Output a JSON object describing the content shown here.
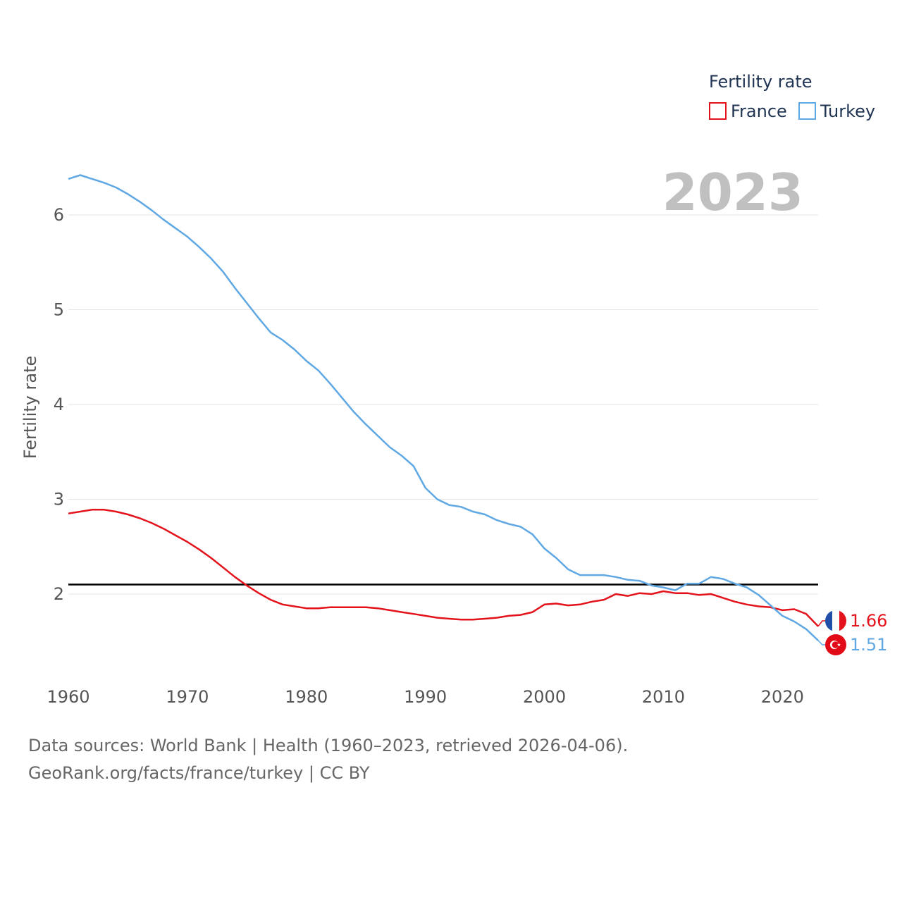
{
  "chart_data": {
    "type": "line",
    "title": "",
    "ylabel": "Fertility rate",
    "xlabel": "",
    "year_label": "2023",
    "legend_title": "Fertility rate",
    "legend_position": "top-right",
    "xlim": [
      1960,
      2023
    ],
    "ylim": [
      1.2,
      6.5
    ],
    "x_ticks": [
      1960,
      1970,
      1980,
      1990,
      2000,
      2010,
      2020
    ],
    "y_ticks": [
      2,
      3,
      4,
      5,
      6
    ],
    "grid": true,
    "reference_line": {
      "value": 2.1,
      "color": "#000000"
    },
    "x": [
      1960,
      1961,
      1962,
      1963,
      1964,
      1965,
      1966,
      1967,
      1968,
      1969,
      1970,
      1971,
      1972,
      1973,
      1974,
      1975,
      1976,
      1977,
      1978,
      1979,
      1980,
      1981,
      1982,
      1983,
      1984,
      1985,
      1986,
      1987,
      1988,
      1989,
      1990,
      1991,
      1992,
      1993,
      1994,
      1995,
      1996,
      1997,
      1998,
      1999,
      2000,
      2001,
      2002,
      2003,
      2004,
      2005,
      2006,
      2007,
      2008,
      2009,
      2010,
      2011,
      2012,
      2013,
      2014,
      2015,
      2016,
      2017,
      2018,
      2019,
      2020,
      2021,
      2022,
      2023
    ],
    "series": [
      {
        "name": "France",
        "color": "#e3121b",
        "end_label": "1.66",
        "values": [
          2.85,
          2.87,
          2.89,
          2.89,
          2.87,
          2.84,
          2.8,
          2.75,
          2.69,
          2.62,
          2.55,
          2.47,
          2.38,
          2.28,
          2.18,
          2.09,
          2.01,
          1.94,
          1.89,
          1.87,
          1.85,
          1.85,
          1.86,
          1.86,
          1.86,
          1.86,
          1.85,
          1.83,
          1.81,
          1.79,
          1.77,
          1.75,
          1.74,
          1.73,
          1.73,
          1.74,
          1.75,
          1.77,
          1.78,
          1.81,
          1.89,
          1.9,
          1.88,
          1.89,
          1.92,
          1.94,
          2.0,
          1.98,
          2.01,
          2.0,
          2.03,
          2.01,
          2.01,
          1.99,
          2.0,
          1.96,
          1.92,
          1.89,
          1.87,
          1.86,
          1.83,
          1.84,
          1.79,
          1.66
        ]
      },
      {
        "name": "Turkey",
        "color": "#5fa8e4",
        "end_label": "1.51",
        "values": [
          6.38,
          6.42,
          6.38,
          6.34,
          6.29,
          6.22,
          6.14,
          6.05,
          5.95,
          5.86,
          5.77,
          5.66,
          5.54,
          5.4,
          5.23,
          5.07,
          4.91,
          4.76,
          4.68,
          4.58,
          4.46,
          4.36,
          4.22,
          4.07,
          3.92,
          3.79,
          3.67,
          3.55,
          3.46,
          3.35,
          3.12,
          3.0,
          2.94,
          2.92,
          2.87,
          2.84,
          2.78,
          2.74,
          2.71,
          2.63,
          2.48,
          2.38,
          2.26,
          2.2,
          2.2,
          2.2,
          2.18,
          2.15,
          2.14,
          2.09,
          2.07,
          2.04,
          2.11,
          2.11,
          2.18,
          2.16,
          2.11,
          2.07,
          1.99,
          1.88,
          1.77,
          1.71,
          1.63,
          1.51
        ]
      }
    ]
  },
  "footer": {
    "line1": "Data sources: World Bank | Health (1960–2023, retrieved 2026-04-06).",
    "line2": "GeoRank.org/facts/france/turkey | CC BY"
  },
  "flags": {
    "france": [
      "#1f4fa8",
      "#ffffff",
      "#e3121b"
    ],
    "turkey_bg": "#e30a17",
    "turkey_fg": "#ffffff"
  }
}
